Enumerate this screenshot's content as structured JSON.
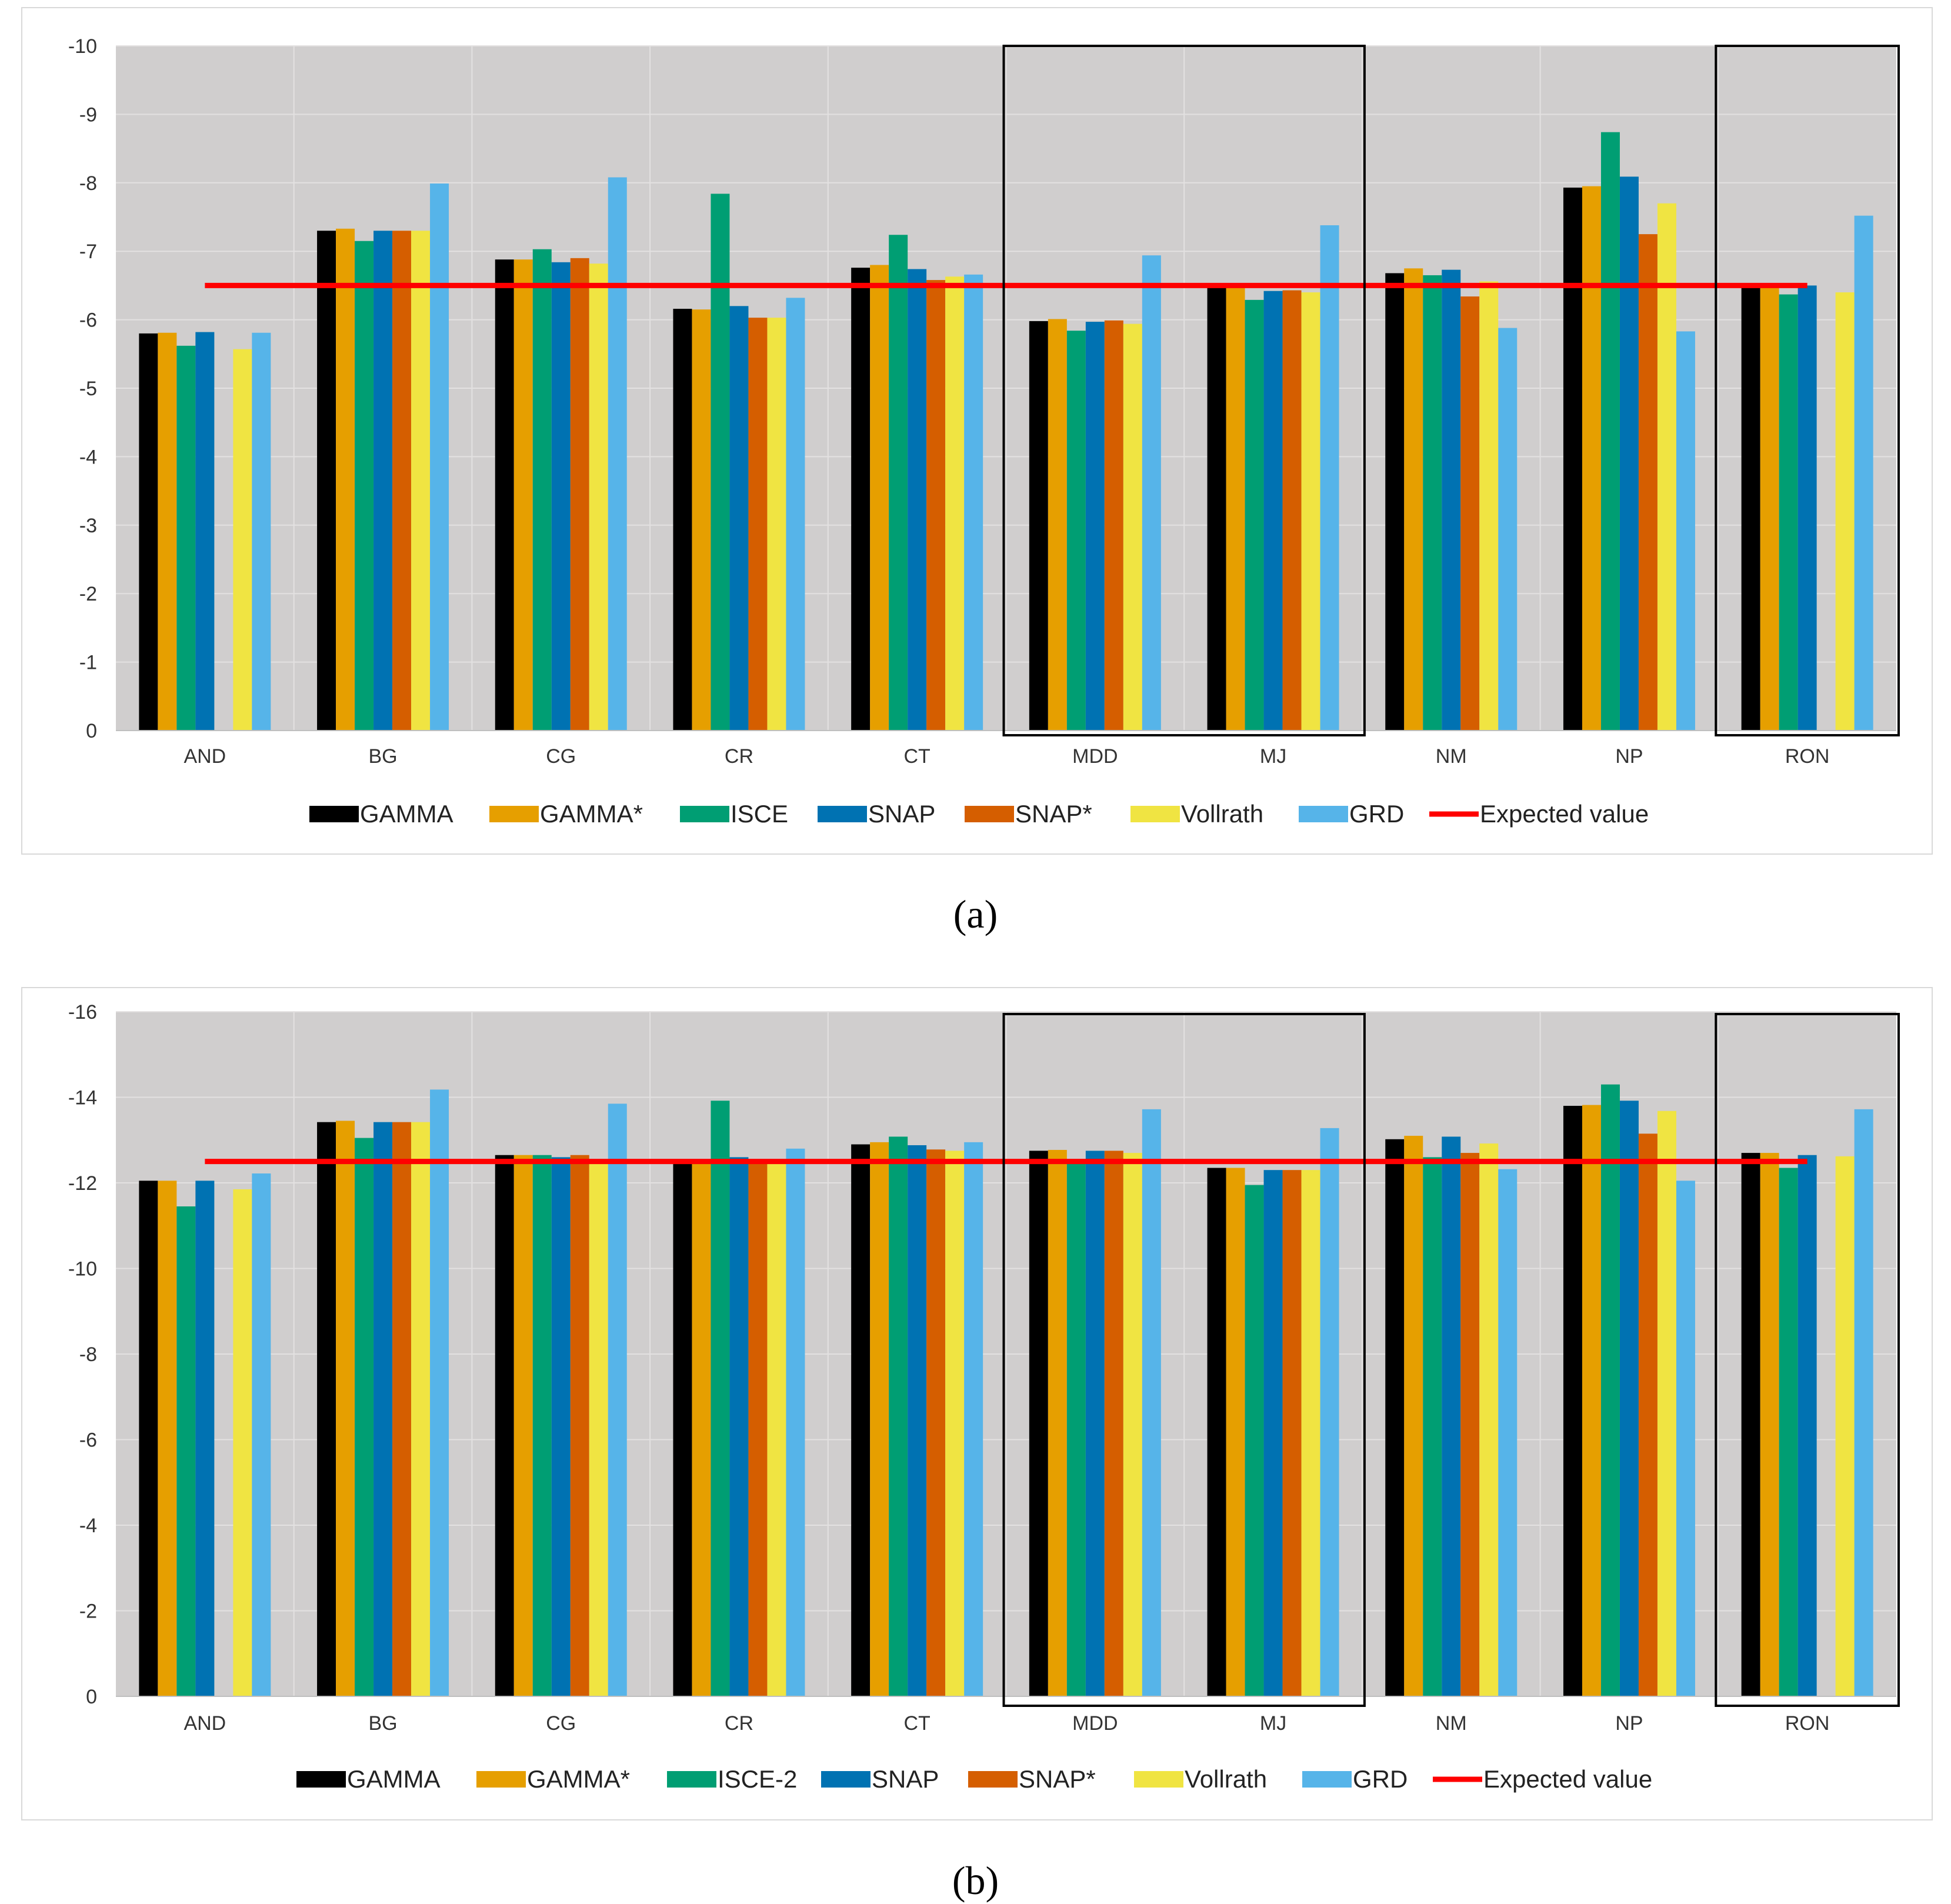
{
  "chart_data": [
    {
      "panel": "a",
      "type": "bar",
      "caption": "(a)",
      "categories": [
        "AND",
        "BG",
        "CG",
        "CR",
        "CT",
        "MDD",
        "MJ",
        "NM",
        "NP",
        "RON"
      ],
      "ylim": [
        0,
        -10
      ],
      "yticks": [
        "-10",
        "-9",
        "-8",
        "-7",
        "-6",
        "-5",
        "-4",
        "-3",
        "-2",
        "-1",
        "0"
      ],
      "ytick_values": [
        -10,
        -9,
        -8,
        -7,
        -6,
        -5,
        -4,
        -3,
        -2,
        -1,
        0
      ],
      "grid": true,
      "series": [
        {
          "name": "GAMMA",
          "color": "#000000",
          "values": [
            -5.8,
            -7.3,
            -6.88,
            -6.16,
            -6.76,
            -5.98,
            -6.48,
            -6.68,
            -7.93,
            -6.48
          ]
        },
        {
          "name": "GAMMA*",
          "color": "#e69f00",
          "values": [
            -5.81,
            -7.33,
            -6.88,
            -6.15,
            -6.8,
            -6.01,
            -6.48,
            -6.75,
            -7.95,
            -6.48
          ]
        },
        {
          "name": "ISCE",
          "color": "#009e73",
          "values": [
            -5.62,
            -7.15,
            -7.03,
            -7.84,
            -7.24,
            -5.84,
            -6.29,
            -6.65,
            -8.74,
            -6.37
          ]
        },
        {
          "name": "SNAP",
          "color": "#0072b2",
          "values": [
            -5.82,
            -7.3,
            -6.84,
            -6.2,
            -6.74,
            -5.97,
            -6.42,
            -6.73,
            -8.09,
            -6.5
          ]
        },
        {
          "name": "SNAP*",
          "color": "#d55e00",
          "values": [
            null,
            -7.3,
            -6.9,
            -6.03,
            -6.58,
            -5.99,
            -6.43,
            -6.34,
            -7.25,
            null
          ]
        },
        {
          "name": "Vollrath",
          "color": "#f0e442",
          "values": [
            -5.57,
            -7.3,
            -6.82,
            -6.03,
            -6.63,
            -5.94,
            -6.4,
            -6.56,
            -7.7,
            -6.4
          ]
        },
        {
          "name": "GRD",
          "color": "#56b4e9",
          "values": [
            -5.81,
            -7.99,
            -8.08,
            -6.32,
            -6.66,
            -6.94,
            -7.38,
            -5.88,
            -5.83,
            -7.52
          ]
        }
      ],
      "expected_value": {
        "name": "Expected value",
        "color": "#ff0000",
        "value": -6.5
      },
      "highlight_groups": [
        [
          "MDD",
          "MJ"
        ],
        [
          "RON"
        ]
      ],
      "legend": "bottom"
    },
    {
      "panel": "b",
      "type": "bar",
      "caption": "(b)",
      "categories": [
        "AND",
        "BG",
        "CG",
        "CR",
        "CT",
        "MDD",
        "MJ",
        "NM",
        "NP",
        "RON"
      ],
      "ylim": [
        0,
        -16
      ],
      "yticks": [
        "-16",
        "-14",
        "-12",
        "-10",
        "-8",
        "-6",
        "-4",
        "-2",
        "0"
      ],
      "ytick_values": [
        -16,
        -14,
        -12,
        -10,
        -8,
        -6,
        -4,
        -2,
        0
      ],
      "grid": true,
      "series": [
        {
          "name": "GAMMA",
          "color": "#000000",
          "values": [
            -12.05,
            -13.42,
            -12.65,
            -12.45,
            -12.9,
            -12.75,
            -12.35,
            -13.02,
            -13.8,
            -12.7
          ]
        },
        {
          "name": "GAMMA*",
          "color": "#e69f00",
          "values": [
            -12.05,
            -13.45,
            -12.65,
            -12.45,
            -12.95,
            -12.77,
            -12.35,
            -13.1,
            -13.82,
            -12.7
          ]
        },
        {
          "name": "ISCE-2",
          "color": "#009e73",
          "values": [
            -11.45,
            -13.05,
            -12.65,
            -13.92,
            -13.08,
            -12.45,
            -11.95,
            -12.6,
            -14.3,
            -12.35
          ]
        },
        {
          "name": "SNAP",
          "color": "#0072b2",
          "values": [
            -12.05,
            -13.42,
            -12.6,
            -12.6,
            -12.88,
            -12.75,
            -12.3,
            -13.08,
            -13.92,
            -12.65
          ]
        },
        {
          "name": "SNAP*",
          "color": "#d55e00",
          "values": [
            null,
            -13.42,
            -12.65,
            -12.45,
            -12.78,
            -12.75,
            -12.3,
            -12.7,
            -13.15,
            null
          ]
        },
        {
          "name": "Vollrath",
          "color": "#f0e442",
          "values": [
            -11.85,
            -13.42,
            -12.45,
            -12.45,
            -12.75,
            -12.7,
            -12.3,
            -12.92,
            -13.68,
            -12.62
          ]
        },
        {
          "name": "GRD",
          "color": "#56b4e9",
          "values": [
            -12.22,
            -14.18,
            -13.85,
            -12.8,
            -12.95,
            -13.72,
            -13.28,
            -12.32,
            -12.05,
            -13.72
          ]
        }
      ],
      "expected_value": {
        "name": "Expected value",
        "color": "#ff0000",
        "value": -12.5
      },
      "highlight_groups": [
        [
          "MDD",
          "MJ"
        ],
        [
          "RON"
        ]
      ],
      "legend": "bottom"
    }
  ]
}
